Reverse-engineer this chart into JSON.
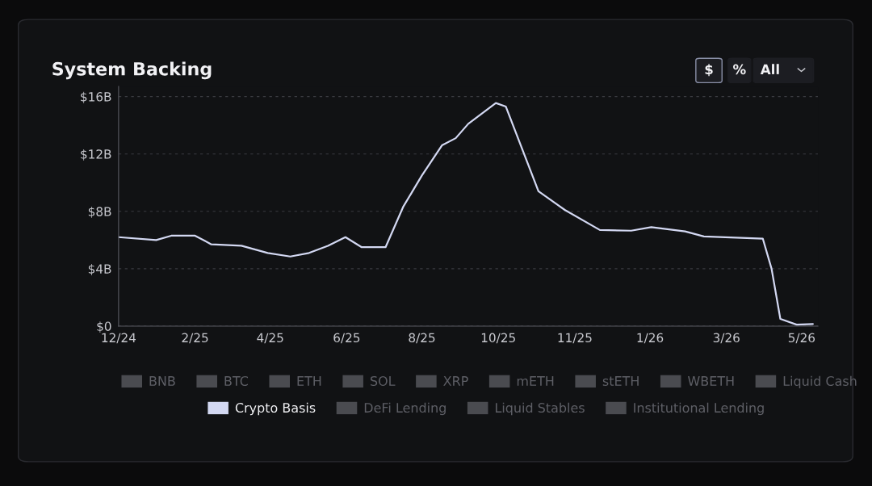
{
  "chart_data": {
    "type": "line",
    "title": "System Backing",
    "annotations": [
      "$",
      "%",
      "All"
    ],
    "xlim": [
      "2024-12-01",
      "2026-06-12"
    ],
    "xticks": [
      {
        "value": "2024-12-01",
        "label": "12/24"
      },
      {
        "value": "2025-01-31",
        "label": "2/25"
      },
      {
        "value": "2025-04-01",
        "label": "4/25"
      },
      {
        "value": "2025-06-01",
        "label": "6/25"
      },
      {
        "value": "2025-07-31",
        "label": "8/25"
      },
      {
        "value": "2025-09-30",
        "label": "10/25"
      },
      {
        "value": "2025-11-30",
        "label": "11/25"
      },
      {
        "value": "2026-01-29",
        "label": "1/26"
      },
      {
        "value": "2026-03-31",
        "label": "3/26"
      },
      {
        "value": "2026-05-30",
        "label": "5/26"
      }
    ],
    "ylim": [
      0,
      16.7
    ],
    "yticks": [
      {
        "value": 0,
        "label": "$0"
      },
      {
        "value": 4,
        "label": "$4B"
      },
      {
        "value": 8,
        "label": "$8B"
      },
      {
        "value": 12,
        "label": "$12B"
      },
      {
        "value": 16,
        "label": "$16B"
      }
    ],
    "grid": "y",
    "legend": "bottom",
    "marker": "none",
    "line_style": "solid",
    "series": [
      {
        "name": "BNB",
        "color": "#4a4b50"
      },
      {
        "name": "BTC",
        "color": "#4a4b50"
      },
      {
        "name": "ETH",
        "color": "#4a4b50"
      },
      {
        "name": "SOL",
        "color": "#4a4b50"
      },
      {
        "name": "XRP",
        "color": "#4a4b50"
      },
      {
        "name": "mETH",
        "color": "#4a4b50"
      },
      {
        "name": "stETH",
        "color": "#4a4b50"
      },
      {
        "name": "WBETH",
        "color": "#4a4b50"
      },
      {
        "name": "Liquid Cash",
        "color": "#4a4b50"
      },
      {
        "name": "Crypto Basis",
        "color": "#d3d8f2",
        "x": [
          "2024-12-01",
          "2024-12-31",
          "2025-01-12",
          "2025-01-31",
          "2025-02-13",
          "2025-03-09",
          "2025-03-30",
          "2025-04-17",
          "2025-05-02",
          "2025-05-17",
          "2025-05-31",
          "2025-06-13",
          "2025-07-02",
          "2025-07-16",
          "2025-07-31",
          "2025-08-16",
          "2025-08-27",
          "2025-09-06",
          "2025-09-28",
          "2025-10-06",
          "2025-11-01",
          "2025-11-22",
          "2025-12-20",
          "2026-01-14",
          "2026-01-30",
          "2026-02-26",
          "2026-03-13",
          "2026-04-29",
          "2026-05-06",
          "2026-05-13",
          "2026-05-26",
          "2026-06-08"
        ],
        "values": [
          6.2,
          6.0,
          6.3,
          6.3,
          5.7,
          5.6,
          5.1,
          4.85,
          5.1,
          5.6,
          6.2,
          5.5,
          5.5,
          8.3,
          10.5,
          12.6,
          13.1,
          14.1,
          15.55,
          15.3,
          9.4,
          8.1,
          6.7,
          6.65,
          6.9,
          6.6,
          6.25,
          6.1,
          4.0,
          0.5,
          0.1,
          0.15
        ]
      },
      {
        "name": "DeFi Lending",
        "color": "#4a4b50"
      },
      {
        "name": "Liquid Stables",
        "color": "#4a4b50"
      },
      {
        "name": "Institutional Lending",
        "color": "#4a4b50"
      }
    ]
  }
}
